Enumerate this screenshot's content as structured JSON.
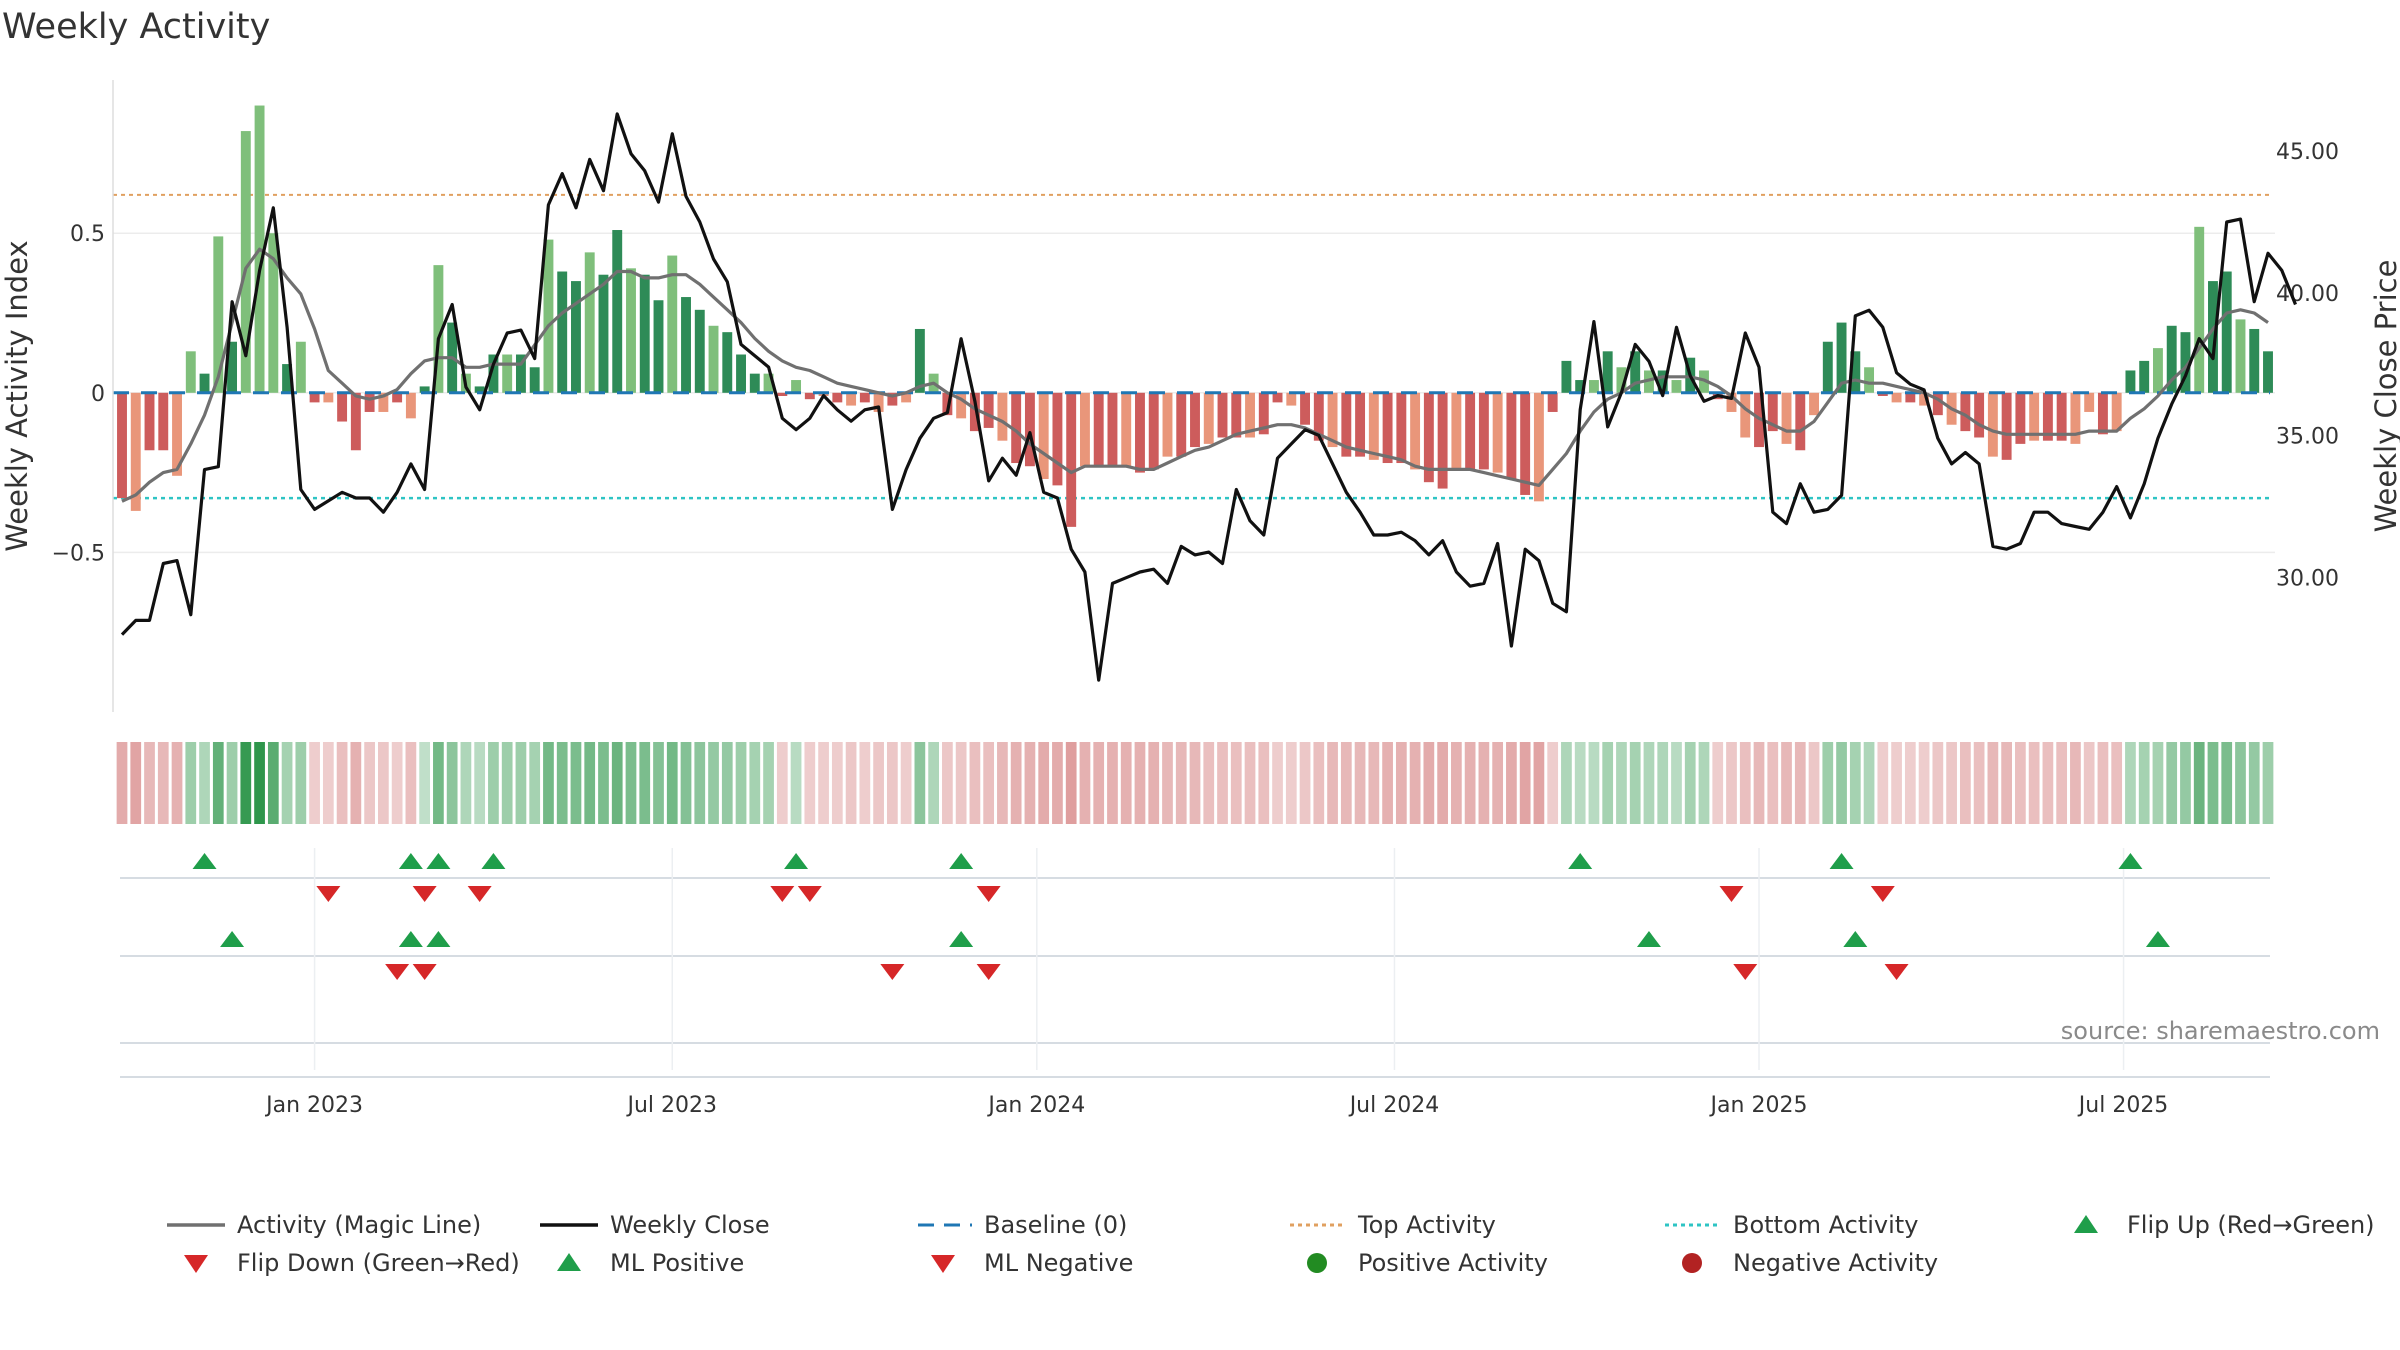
{
  "chart_data": {
    "type": "bar+line",
    "title": "Weekly Activity",
    "ylabel_left": "Weekly Activity Index",
    "ylabel_right": "Weekly Close Price",
    "source": "source: sharemaestro.com",
    "x_tick_labels": [
      "Jan 2023",
      "Jul 2023",
      "Jan 2024",
      "Jul 2024",
      "Jan 2025",
      "Jul 2025"
    ],
    "x_tick_weeks": [
      14,
      40,
      66.5,
      92.5,
      119,
      145.5
    ],
    "y_left_ticks": [
      {
        "value": 0.5,
        "label": "0.5"
      },
      {
        "value": 0,
        "label": "0"
      },
      {
        "value": -0.5,
        "label": "−0.5"
      }
    ],
    "y_right_ticks": [
      {
        "value": 30,
        "label": "30.00"
      },
      {
        "value": 35,
        "label": "35.00"
      },
      {
        "value": 40,
        "label": "40.00"
      },
      {
        "value": 45,
        "label": "45.00"
      }
    ],
    "ylim_left": [
      -1.0,
      0.98
    ],
    "ylim_right": [
      25.28,
      47.49
    ],
    "top_activity": 0.62,
    "bottom_activity": -0.33,
    "baseline": 0,
    "colors": {
      "strong_pos": "#2e8b57",
      "weak_pos": "#7fbf7b",
      "strong_neg": "#cd5c5c",
      "weak_neg": "#e9967a",
      "magic_line": "#707070",
      "close_line": "#111111",
      "baseline": "#1f77b4",
      "top_activity": "#e0a060",
      "bottom_activity": "#2ec4c4",
      "flip_up": "#1f9e4a",
      "flip_down": "#d62728",
      "positive_dot": "#228b22",
      "negative_dot": "#b22222"
    },
    "series": [
      {
        "name": "Weekly Activity Index",
        "type": "bar",
        "values": [
          -0.33,
          -0.37,
          -0.18,
          -0.18,
          -0.26,
          0.13,
          0.06,
          0.49,
          0.16,
          0.82,
          0.9,
          0.5,
          0.09,
          0.16,
          -0.03,
          -0.03,
          -0.09,
          -0.18,
          -0.06,
          -0.06,
          -0.03,
          -0.08,
          0.02,
          0.4,
          0.22,
          0.06,
          0.02,
          0.12,
          0.12,
          0.12,
          0.08,
          0.48,
          0.38,
          0.35,
          0.44,
          0.37,
          0.51,
          0.39,
          0.37,
          0.29,
          0.43,
          0.3,
          0.26,
          0.21,
          0.19,
          0.12,
          0.06,
          0.06,
          -0.01,
          0.04,
          -0.02,
          -0.01,
          -0.03,
          -0.04,
          -0.03,
          -0.06,
          -0.04,
          -0.03,
          0.2,
          0.06,
          -0.07,
          -0.08,
          -0.12,
          -0.11,
          -0.15,
          -0.22,
          -0.23,
          -0.27,
          -0.29,
          -0.42,
          -0.23,
          -0.23,
          -0.23,
          -0.23,
          -0.25,
          -0.24,
          -0.2,
          -0.2,
          -0.17,
          -0.16,
          -0.14,
          -0.14,
          -0.14,
          -0.13,
          -0.03,
          -0.04,
          -0.1,
          -0.15,
          -0.17,
          -0.2,
          -0.2,
          -0.21,
          -0.22,
          -0.22,
          -0.24,
          -0.28,
          -0.3,
          -0.24,
          -0.24,
          -0.24,
          -0.25,
          -0.27,
          -0.32,
          -0.34,
          -0.06,
          0.1,
          0.04,
          0.04,
          0.13,
          0.08,
          0.13,
          0.07,
          0.07,
          0.04,
          0.11,
          0.07,
          -0.02,
          -0.06,
          -0.14,
          -0.17,
          -0.12,
          -0.16,
          -0.18,
          -0.07,
          0.16,
          0.22,
          0.13,
          0.08,
          -0.01,
          -0.03,
          -0.03,
          -0.04,
          -0.07,
          -0.1,
          -0.12,
          -0.14,
          -0.2,
          -0.21,
          -0.16,
          -0.15,
          -0.15,
          -0.15,
          -0.16,
          -0.06,
          -0.13,
          -0.12,
          0.07,
          0.1,
          0.14,
          0.21,
          0.19,
          0.52,
          0.35,
          0.38,
          0.23,
          0.2,
          0.13
        ]
      },
      {
        "name": "Activity (Magic Line)",
        "type": "line",
        "values": [
          -0.34,
          -0.32,
          -0.28,
          -0.25,
          -0.24,
          -0.16,
          -0.07,
          0.05,
          0.22,
          0.39,
          0.45,
          0.42,
          0.36,
          0.31,
          0.2,
          0.07,
          0.03,
          -0.01,
          -0.02,
          -0.01,
          0.01,
          0.06,
          0.1,
          0.11,
          0.11,
          0.08,
          0.08,
          0.09,
          0.09,
          0.09,
          0.15,
          0.21,
          0.25,
          0.28,
          0.31,
          0.34,
          0.38,
          0.38,
          0.36,
          0.36,
          0.37,
          0.37,
          0.34,
          0.3,
          0.26,
          0.22,
          0.17,
          0.13,
          0.1,
          0.08,
          0.07,
          0.05,
          0.03,
          0.02,
          0.01,
          0.0,
          -0.01,
          0.0,
          0.02,
          0.03,
          0.0,
          -0.02,
          -0.05,
          -0.07,
          -0.09,
          -0.12,
          -0.16,
          -0.19,
          -0.22,
          -0.25,
          -0.23,
          -0.23,
          -0.23,
          -0.23,
          -0.24,
          -0.24,
          -0.22,
          -0.2,
          -0.18,
          -0.17,
          -0.15,
          -0.13,
          -0.12,
          -0.11,
          -0.1,
          -0.1,
          -0.11,
          -0.13,
          -0.15,
          -0.17,
          -0.18,
          -0.19,
          -0.2,
          -0.21,
          -0.23,
          -0.24,
          -0.24,
          -0.24,
          -0.24,
          -0.25,
          -0.26,
          -0.27,
          -0.28,
          -0.29,
          -0.24,
          -0.19,
          -0.12,
          -0.06,
          -0.02,
          0.0,
          0.03,
          0.04,
          0.05,
          0.05,
          0.05,
          0.04,
          0.02,
          -0.01,
          -0.05,
          -0.08,
          -0.1,
          -0.12,
          -0.12,
          -0.09,
          -0.03,
          0.03,
          0.04,
          0.03,
          0.03,
          0.02,
          0.01,
          0.0,
          -0.02,
          -0.05,
          -0.07,
          -0.1,
          -0.12,
          -0.13,
          -0.13,
          -0.13,
          -0.13,
          -0.13,
          -0.13,
          -0.12,
          -0.12,
          -0.12,
          -0.08,
          -0.05,
          -0.01,
          0.04,
          0.08,
          0.14,
          0.2,
          0.25,
          0.26,
          0.25,
          0.22
        ]
      },
      {
        "name": "Weekly Close",
        "type": "line",
        "axis": "right",
        "values": [
          28.0,
          28.5,
          28.5,
          30.5,
          30.6,
          28.7,
          33.8,
          33.9,
          39.7,
          37.8,
          40.8,
          43.0,
          38.8,
          33.1,
          32.4,
          32.7,
          33.0,
          32.8,
          32.8,
          32.3,
          33.0,
          34.0,
          33.1,
          38.4,
          39.6,
          36.7,
          35.9,
          37.5,
          38.6,
          38.7,
          37.7,
          43.1,
          44.2,
          43.0,
          44.7,
          43.6,
          46.3,
          44.9,
          44.3,
          43.2,
          45.6,
          43.4,
          42.5,
          41.2,
          40.4,
          38.2,
          37.8,
          37.4,
          35.6,
          35.2,
          35.6,
          36.4,
          35.9,
          35.5,
          35.9,
          36.0,
          32.4,
          33.8,
          34.9,
          35.6,
          35.8,
          38.4,
          36.2,
          33.4,
          34.2,
          33.6,
          35.1,
          33.0,
          32.8,
          31.0,
          30.2,
          26.4,
          29.8,
          30.0,
          30.2,
          30.3,
          29.8,
          31.1,
          30.8,
          30.9,
          30.5,
          33.1,
          32.0,
          31.5,
          34.2,
          34.7,
          35.2,
          35.0,
          34.0,
          33.0,
          32.3,
          31.5,
          31.5,
          31.6,
          31.3,
          30.8,
          31.3,
          30.2,
          29.7,
          29.8,
          31.2,
          27.6,
          31.0,
          30.6,
          29.1,
          28.8,
          35.9,
          39.0,
          35.3,
          36.5,
          38.2,
          37.6,
          36.4,
          38.8,
          37.1,
          36.2,
          36.4,
          36.3,
          38.6,
          37.4,
          32.3,
          31.9,
          33.3,
          32.3,
          32.4,
          32.9,
          39.2,
          39.4,
          38.8,
          37.2,
          36.8,
          36.6,
          34.9,
          34.0,
          34.4,
          34.0,
          31.1,
          31.0,
          31.2,
          32.3,
          32.3,
          31.9,
          31.8,
          31.7,
          32.3,
          33.2,
          32.1,
          33.3,
          34.9,
          36.1,
          37.1,
          38.4,
          37.7,
          42.5,
          42.6,
          39.7,
          41.4,
          40.8,
          39.6
        ]
      }
    ],
    "strip_intensity": [
      -0.4,
      -0.45,
      -0.3,
      -0.3,
      -0.35,
      0.35,
      0.25,
      0.7,
      0.35,
      0.95,
      1.0,
      0.75,
      0.3,
      0.35,
      -0.15,
      -0.15,
      -0.25,
      -0.35,
      -0.2,
      -0.2,
      -0.15,
      -0.25,
      0.15,
      0.6,
      0.45,
      0.25,
      0.2,
      0.35,
      0.35,
      0.35,
      0.3,
      0.6,
      0.55,
      0.55,
      0.6,
      0.55,
      0.65,
      0.55,
      0.55,
      0.5,
      0.6,
      0.5,
      0.45,
      0.4,
      0.4,
      0.35,
      0.3,
      0.3,
      -0.15,
      0.2,
      -0.15,
      -0.15,
      -0.15,
      -0.2,
      -0.15,
      -0.2,
      -0.2,
      -0.15,
      0.45,
      0.25,
      -0.2,
      -0.2,
      -0.25,
      -0.25,
      -0.3,
      -0.35,
      -0.35,
      -0.4,
      -0.4,
      -0.5,
      -0.35,
      -0.35,
      -0.35,
      -0.35,
      -0.35,
      -0.35,
      -0.3,
      -0.3,
      -0.3,
      -0.25,
      -0.25,
      -0.25,
      -0.25,
      -0.25,
      -0.15,
      -0.15,
      -0.2,
      -0.25,
      -0.3,
      -0.3,
      -0.3,
      -0.3,
      -0.35,
      -0.35,
      -0.35,
      -0.4,
      -0.4,
      -0.35,
      -0.35,
      -0.35,
      -0.35,
      -0.4,
      -0.45,
      -0.45,
      -0.15,
      0.25,
      0.2,
      0.2,
      0.3,
      0.25,
      0.3,
      0.25,
      0.25,
      0.2,
      0.3,
      0.25,
      -0.15,
      -0.2,
      -0.25,
      -0.3,
      -0.25,
      -0.3,
      -0.3,
      -0.2,
      0.35,
      0.4,
      0.3,
      0.25,
      -0.15,
      -0.15,
      -0.15,
      -0.15,
      -0.2,
      -0.2,
      -0.25,
      -0.25,
      -0.3,
      -0.3,
      -0.25,
      -0.25,
      -0.25,
      -0.25,
      -0.3,
      -0.2,
      -0.25,
      -0.25,
      0.25,
      0.3,
      0.3,
      0.4,
      0.4,
      0.65,
      0.55,
      0.55,
      0.45,
      0.4,
      0.35
    ],
    "strip_gap_after_week": 72,
    "events": {
      "flip_up_row1": [
        6,
        21,
        23,
        27,
        49,
        61,
        106,
        125,
        146
      ],
      "flip_down_row1": [
        15,
        22,
        26,
        48,
        50,
        63,
        117,
        128
      ],
      "ml_positive_row2": [
        8,
        21,
        23,
        61,
        111,
        126,
        148
      ],
      "ml_negative_row2": [
        20,
        22,
        56,
        63,
        118,
        129
      ]
    },
    "legend": [
      {
        "label": "Activity (Magic Line)",
        "symbol": "line",
        "color": "#707070"
      },
      {
        "label": "Weekly Close",
        "symbol": "line",
        "color": "#111111"
      },
      {
        "label": "Baseline (0)",
        "symbol": "dashed",
        "color": "#1f77b4"
      },
      {
        "label": "Top Activity",
        "symbol": "dotted",
        "color": "#e0a060"
      },
      {
        "label": "Bottom Activity",
        "symbol": "dotted",
        "color": "#2ec4c4"
      },
      {
        "label": "Flip Up (Red→Green)",
        "symbol": "triangle-up",
        "color": "#1f9e4a"
      },
      {
        "label": "Flip Down (Green→Red)",
        "symbol": "triangle-down",
        "color": "#d62728"
      },
      {
        "label": "ML Positive",
        "symbol": "triangle-up",
        "color": "#1f9e4a"
      },
      {
        "label": "ML Negative",
        "symbol": "triangle-down",
        "color": "#d62728"
      },
      {
        "label": "Positive Activity",
        "symbol": "dot",
        "color": "#228b22"
      },
      {
        "label": "Negative Activity",
        "symbol": "dot",
        "color": "#b22222"
      }
    ]
  }
}
